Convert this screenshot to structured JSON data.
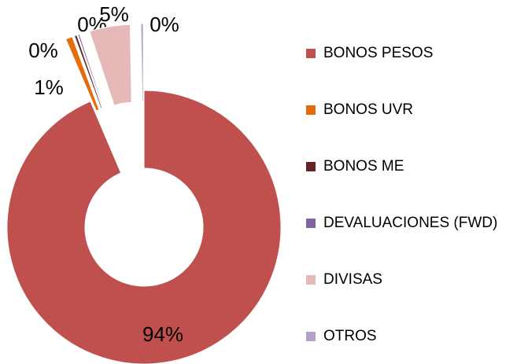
{
  "chart_data": {
    "type": "donut",
    "categories": [
      "BONOS PESOS",
      "BONOS UVR",
      "BONOS ME",
      "DEVALUACIONES (FWD)",
      "DIVISAS",
      "OTROS"
    ],
    "values": [
      93.6,
      0.8,
      0.3,
      0.2,
      4.8,
      0.3
    ],
    "value_labels": [
      "94%",
      "1%",
      "0%",
      "0%",
      "5%",
      "0%"
    ],
    "colors": [
      "#c0504d",
      "#e46c0a",
      "#632523",
      "#8064a2",
      "#e6b9b8",
      "#b3a2c7"
    ],
    "legend": "right"
  }
}
